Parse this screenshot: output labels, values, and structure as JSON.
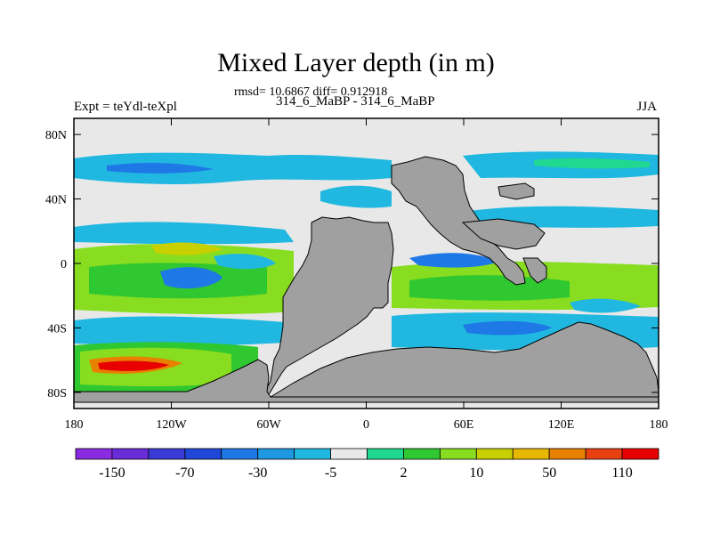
{
  "figure": {
    "title": "Mixed Layer depth (in m)",
    "stats_line": "rmsd= 10.6867 diff= 0.912918",
    "subtitle": "314_6_MaBP - 314_6_MaBP",
    "left_label": "Expt = teYdl-teXpl",
    "right_label": "JJA"
  },
  "chart_data": {
    "type": "heatmap",
    "title": "Mixed Layer depth (in m)",
    "projection": "cylindrical equidistant",
    "xlim": [
      -180,
      180
    ],
    "ylim": [
      -90,
      90
    ],
    "x_ticks": [
      {
        "value": -180,
        "label": "180"
      },
      {
        "value": -120,
        "label": "120W"
      },
      {
        "value": -60,
        "label": "60W"
      },
      {
        "value": 0,
        "label": "0"
      },
      {
        "value": 60,
        "label": "60E"
      },
      {
        "value": 120,
        "label": "120E"
      },
      {
        "value": 180,
        "label": "180"
      }
    ],
    "y_ticks": [
      {
        "value": 80,
        "label": "80N"
      },
      {
        "value": 40,
        "label": "40N"
      },
      {
        "value": 0,
        "label": "0"
      },
      {
        "value": -40,
        "label": "40S"
      },
      {
        "value": -80,
        "label": "80S"
      }
    ],
    "colorbar": {
      "colors": [
        "#8a2be2",
        "#6a2bd8",
        "#3a3ad6",
        "#2048d8",
        "#1e78e6",
        "#1e98e0",
        "#20b8e0",
        "#e8e8e8",
        "#20d890",
        "#30c830",
        "#88dd20",
        "#c8d000",
        "#e8b800",
        "#e88000",
        "#e84010",
        "#e80000"
      ],
      "tick_labels": [
        {
          "slot": 1,
          "label": "-150"
        },
        {
          "slot": 3,
          "label": "-70"
        },
        {
          "slot": 5,
          "label": "-30"
        },
        {
          "slot": 7,
          "label": "-5"
        },
        {
          "slot": 9,
          "label": "2"
        },
        {
          "slot": 11,
          "label": "10"
        },
        {
          "slot": 13,
          "label": "50"
        },
        {
          "slot": 15,
          "label": "110"
        }
      ]
    },
    "notable_feature": "Strong positive anomaly (about 110 m) near 65S, 150W; continents masked in gray"
  }
}
